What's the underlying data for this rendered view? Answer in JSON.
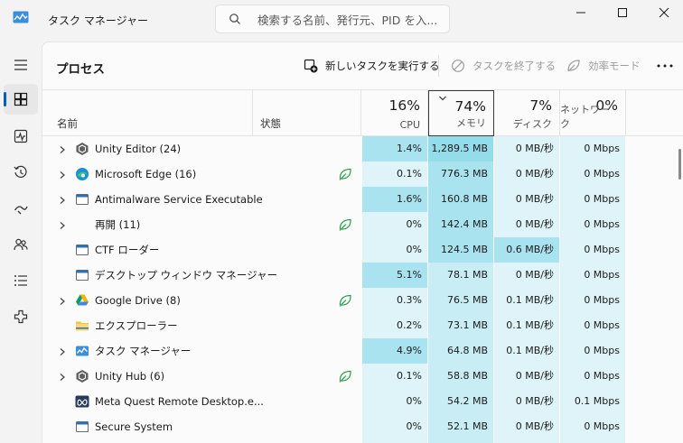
{
  "window": {
    "title": "タスク マネージャー",
    "search_placeholder": "検索する名前、発行元、PID を入..."
  },
  "nav": [
    {
      "name": "nav-menu",
      "icon": "hamburger-icon",
      "active": false
    },
    {
      "name": "nav-processes",
      "icon": "processes-icon",
      "active": true
    },
    {
      "name": "nav-performance",
      "icon": "performance-icon",
      "active": false
    },
    {
      "name": "nav-app-history",
      "icon": "history-icon",
      "active": false
    },
    {
      "name": "nav-startup-apps",
      "icon": "startup-icon",
      "active": false
    },
    {
      "name": "nav-users",
      "icon": "users-icon",
      "active": false
    },
    {
      "name": "nav-details",
      "icon": "details-icon",
      "active": false
    },
    {
      "name": "nav-services",
      "icon": "services-icon",
      "active": false
    }
  ],
  "toolbar": {
    "title": "プロセス",
    "new_task": "新しいタスクを実行する",
    "end_task": "タスクを終了する",
    "efficiency_mode": "効率モード"
  },
  "columns": {
    "name": "名前",
    "status": "状態",
    "cpu": {
      "pct": "16%",
      "label": "CPU"
    },
    "memory": {
      "pct": "74%",
      "label": "メモリ"
    },
    "disk": {
      "pct": "7%",
      "label": "ディスク"
    },
    "network": {
      "pct": "0%",
      "label": "ネットワーク"
    }
  },
  "heat_colors": {
    "light": "#def4f8",
    "mid": "#c8edf5",
    "strong": "#a9e3ef",
    "deep": "#95dceb",
    "none": "#fbfbfb"
  },
  "rows": [
    {
      "name": "Unity Editor (24)",
      "icon": "unity-icon",
      "expandable": true,
      "efficiency": false,
      "cpu": "1.4%",
      "memory": "1,289.5 MB",
      "disk": "0 MB/秒",
      "network": "0 Mbps",
      "cpu_heat": "strong",
      "mem_heat": "deep",
      "disk_heat": "light",
      "net_heat": "light"
    },
    {
      "name": "Microsoft Edge (16)",
      "icon": "edge-icon",
      "expandable": true,
      "efficiency": true,
      "cpu": "0.1%",
      "memory": "776.3 MB",
      "disk": "0 MB/秒",
      "network": "0 Mbps",
      "cpu_heat": "light",
      "mem_heat": "strong",
      "disk_heat": "light",
      "net_heat": "light"
    },
    {
      "name": "Antimalware Service Executable",
      "icon": "shield-app-icon",
      "expandable": true,
      "efficiency": false,
      "cpu": "1.6%",
      "memory": "160.8 MB",
      "disk": "0 MB/秒",
      "network": "0 Mbps",
      "cpu_heat": "strong",
      "mem_heat": "strong",
      "disk_heat": "light",
      "net_heat": "light"
    },
    {
      "name": "再開 (11)",
      "icon": "blank-icon",
      "expandable": true,
      "efficiency": true,
      "cpu": "0%",
      "memory": "142.4 MB",
      "disk": "0 MB/秒",
      "network": "0 Mbps",
      "cpu_heat": "light",
      "mem_heat": "strong",
      "disk_heat": "light",
      "net_heat": "light"
    },
    {
      "name": "CTF ローダー",
      "icon": "ctf-icon",
      "expandable": false,
      "efficiency": false,
      "cpu": "0%",
      "memory": "124.5 MB",
      "disk": "0.6 MB/秒",
      "network": "0 Mbps",
      "cpu_heat": "light",
      "mem_heat": "strong",
      "disk_heat": "strong",
      "net_heat": "light"
    },
    {
      "name": "デスクトップ ウィンドウ マネージャー",
      "icon": "window-app-icon",
      "expandable": false,
      "efficiency": false,
      "cpu": "5.1%",
      "memory": "78.1 MB",
      "disk": "0 MB/秒",
      "network": "0 Mbps",
      "cpu_heat": "strong",
      "mem_heat": "mid",
      "disk_heat": "light",
      "net_heat": "light"
    },
    {
      "name": "Google Drive (8)",
      "icon": "google-drive-icon",
      "expandable": true,
      "efficiency": true,
      "cpu": "0.3%",
      "memory": "76.5 MB",
      "disk": "0.1 MB/秒",
      "network": "0 Mbps",
      "cpu_heat": "light",
      "mem_heat": "mid",
      "disk_heat": "light",
      "net_heat": "light"
    },
    {
      "name": "エクスプローラー",
      "icon": "folder-icon",
      "expandable": false,
      "efficiency": false,
      "cpu": "0.2%",
      "memory": "73.1 MB",
      "disk": "0.1 MB/秒",
      "network": "0 Mbps",
      "cpu_heat": "light",
      "mem_heat": "mid",
      "disk_heat": "light",
      "net_heat": "light"
    },
    {
      "name": "タスク マネージャー",
      "icon": "task-manager-icon",
      "expandable": true,
      "efficiency": false,
      "cpu": "4.9%",
      "memory": "64.8 MB",
      "disk": "0.1 MB/秒",
      "network": "0 Mbps",
      "cpu_heat": "strong",
      "mem_heat": "mid",
      "disk_heat": "light",
      "net_heat": "light"
    },
    {
      "name": "Unity Hub (6)",
      "icon": "unity-icon",
      "expandable": true,
      "efficiency": true,
      "cpu": "0.1%",
      "memory": "58.8 MB",
      "disk": "0 MB/秒",
      "network": "0 Mbps",
      "cpu_heat": "light",
      "mem_heat": "mid",
      "disk_heat": "light",
      "net_heat": "light"
    },
    {
      "name": "Meta Quest Remote Desktop.e...",
      "icon": "meta-icon",
      "expandable": false,
      "efficiency": false,
      "cpu": "0%",
      "memory": "54.2 MB",
      "disk": "0 MB/秒",
      "network": "0.1 Mbps",
      "cpu_heat": "light",
      "mem_heat": "mid",
      "disk_heat": "light",
      "net_heat": "light"
    },
    {
      "name": "Secure System",
      "icon": "window-app-icon",
      "expandable": false,
      "efficiency": false,
      "cpu": "0%",
      "memory": "52.1 MB",
      "disk": "0 MB/秒",
      "network": "0 Mbps",
      "cpu_heat": "light",
      "mem_heat": "mid",
      "disk_heat": "light",
      "net_heat": "light"
    },
    {
      "name": "",
      "icon": "blank-icon",
      "expandable": false,
      "efficiency": false,
      "cpu": "",
      "memory": "",
      "disk": "",
      "network": "",
      "cpu_heat": "light",
      "mem_heat": "mid",
      "disk_heat": "light",
      "net_heat": "light"
    }
  ]
}
